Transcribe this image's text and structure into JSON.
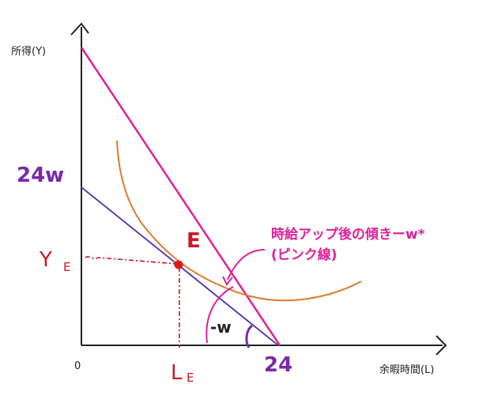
{
  "axes": {
    "y_label": "所得(Y)",
    "x_label": "余暇時間(L)",
    "origin_label": "0"
  },
  "labels": {
    "y_intercept": "24w",
    "x_intercept": "24",
    "point": "E",
    "y_equilibrium_main": "Y",
    "y_equilibrium_sub": "E",
    "l_equilibrium_main": "L",
    "l_equilibrium_sub": "E",
    "slope_original": "-w",
    "annotation_line1": "時給アップ後の傾きーw*",
    "annotation_line2": "(ピンク線)"
  },
  "colors": {
    "axis": "#222222",
    "budget_original": "#5a3fb5",
    "budget_new": "#e0209a",
    "indifference": "#e07a2a",
    "point": "#e01818",
    "dashed": "#c8182a",
    "angle_arc": "#7a2aa8"
  }
}
